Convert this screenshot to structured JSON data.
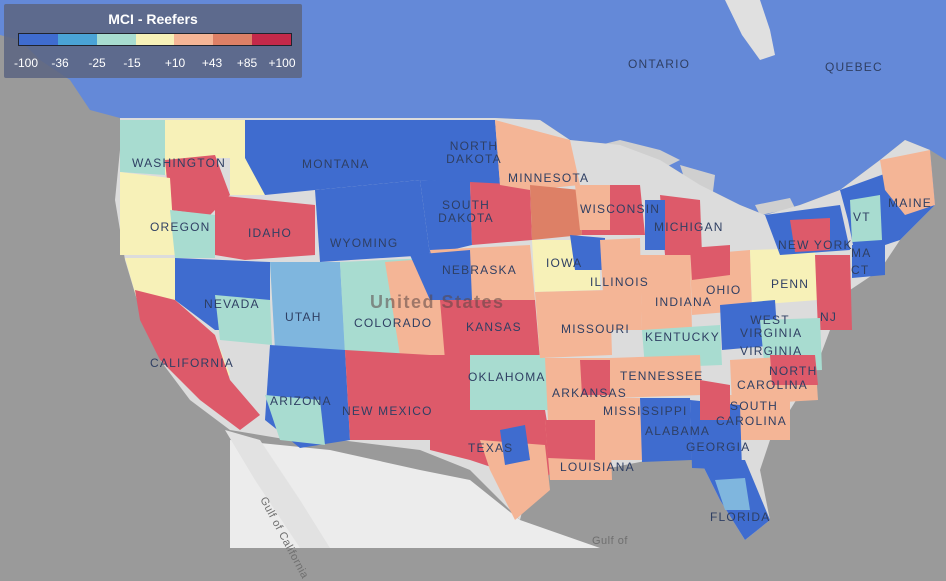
{
  "legend": {
    "title": "MCI - Reefers",
    "colors": [
      "#3f6ccf",
      "#4aa3d6",
      "#a8dcd0",
      "#f7f1b8",
      "#f4b596",
      "#dd8066",
      "#c4294a"
    ],
    "ticks": [
      "-100",
      "-36",
      "-25",
      "-15",
      "+10",
      "+43",
      "+85",
      "+100"
    ]
  },
  "labels": {
    "country": "United States",
    "water": [
      "Gulf of",
      "Gulf of California"
    ],
    "provinces": [
      "ONTARIO",
      "QUEBEC"
    ],
    "states": [
      "WASHINGTON",
      "OREGON",
      "IDAHO",
      "MONTANA",
      "NORTH DAKOTA",
      "SOUTH DAKOTA",
      "MINNESOTA",
      "WYOMING",
      "NEBRASKA",
      "IOWA",
      "WISCONSIN",
      "MICHIGAN",
      "NEVADA",
      "UTAH",
      "COLORADO",
      "KANSAS",
      "MISSOURI",
      "ILLINOIS",
      "INDIANA",
      "OHIO",
      "PENN",
      "NEW YORK",
      "MAINE",
      "VT",
      "MA",
      "CT",
      "NJ",
      "WEST VIRGINIA",
      "VIRGINIA",
      "KENTUCKY",
      "TENNESSEE",
      "NORTH",
      "CAROLINA",
      "SOUTH",
      "CAROLINA",
      "CALIFORNIA",
      "ARIZONA",
      "NEW MEXICO",
      "OKLAHOMA",
      "TEXAS",
      "ARKANSAS",
      "MISSISSIPPI",
      "ALABAMA",
      "GEORGIA",
      "LOUISIANA",
      "FLORIDA"
    ]
  },
  "colors": {
    "canada": "#6489d8",
    "land": "#dcdcdc",
    "mexico": "#ececec",
    "water": "#9a9a9a"
  }
}
